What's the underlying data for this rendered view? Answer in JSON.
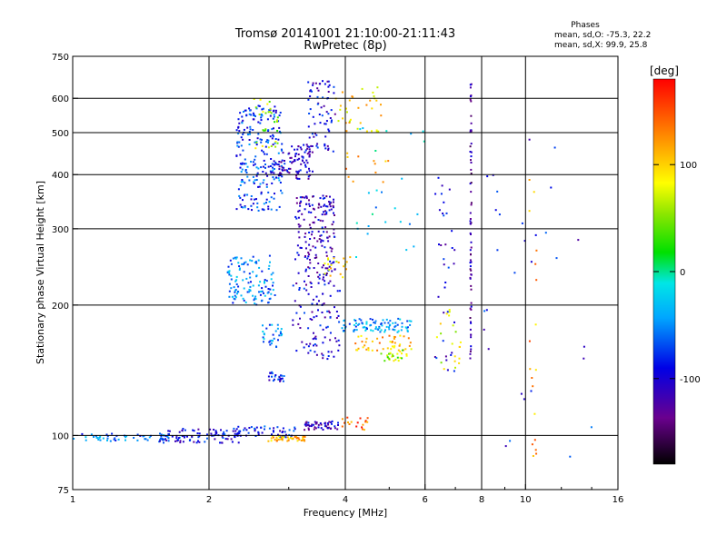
{
  "chart_data": {
    "type": "scatter",
    "title": "Tromsø 20141001 21:10:00-21:11:43",
    "subtitle": "RwPretec (8p)",
    "xlabel": "Frequency [MHz]",
    "ylabel": "Stationary phase Virtual Height [km]",
    "xscale": "log",
    "yscale": "log",
    "xlim": [
      1,
      16
    ],
    "ylim": [
      75,
      750
    ],
    "xticks": [
      1,
      2,
      4,
      6,
      8,
      10,
      16
    ],
    "xtick_labels": [
      "1",
      "2",
      "4",
      "6",
      "8",
      "10",
      "16"
    ],
    "yticks": [
      75,
      100,
      200,
      300,
      400,
      500,
      600,
      750
    ],
    "ytick_labels": [
      "75",
      "100",
      "200",
      "300",
      "400",
      "500",
      "600",
      "750"
    ],
    "xgrid": [
      2,
      4,
      6,
      8,
      10
    ],
    "ygrid": [
      100,
      200,
      300,
      400,
      500,
      600
    ],
    "legend_placement": "top-right",
    "stats": {
      "heading": "Phases",
      "line_o": "mean, sd,O: -75.3, 22.2",
      "line_x": "mean, sd,X:  99.9, 25.8"
    },
    "colorbar": {
      "label": "[deg]",
      "range": [
        -180,
        180
      ],
      "ticks": [
        -100,
        0,
        100
      ],
      "tick_labels": [
        "-100",
        "0",
        "100"
      ],
      "colormap": "rainbow"
    },
    "clusters": [
      {
        "f": [
          1.0,
          1.75
        ],
        "h": [
          97,
          101
        ],
        "phase": -60,
        "n": 60
      },
      {
        "f": [
          1.55,
          2.35
        ],
        "h": [
          96,
          104
        ],
        "phase": -95,
        "n": 90
      },
      {
        "f": [
          2.3,
          3.1
        ],
        "h": [
          99,
          105
        ],
        "phase": -85,
        "n": 50
      },
      {
        "f": [
          2.7,
          3.3
        ],
        "h": [
          97,
          100
        ],
        "phase": 110,
        "n": 45
      },
      {
        "f": [
          3.25,
          3.9
        ],
        "h": [
          103,
          108
        ],
        "phase": -110,
        "n": 50
      },
      {
        "f": [
          3.9,
          4.5
        ],
        "h": [
          103,
          110
        ],
        "phase": 140,
        "n": 18
      },
      {
        "f": [
          2.3,
          2.9
        ],
        "h": [
          330,
          580
        ],
        "phase": -75,
        "n": 240
      },
      {
        "f": [
          2.5,
          2.85
        ],
        "h": [
          460,
          600
        ],
        "phase": 60,
        "n": 30
      },
      {
        "f": [
          2.85,
          3.4
        ],
        "h": [
          390,
          470
        ],
        "phase": -105,
        "n": 90
      },
      {
        "f": [
          3.3,
          3.8
        ],
        "h": [
          450,
          660
        ],
        "phase": -100,
        "n": 70
      },
      {
        "f": [
          3.1,
          3.8
        ],
        "h": [
          230,
          360
        ],
        "phase": -110,
        "n": 170
      },
      {
        "f": [
          3.05,
          3.9
        ],
        "h": [
          150,
          230
        ],
        "phase": -100,
        "n": 100
      },
      {
        "f": [
          2.2,
          2.8
        ],
        "h": [
          200,
          260
        ],
        "phase": -55,
        "n": 120
      },
      {
        "f": [
          2.6,
          2.9
        ],
        "h": [
          160,
          180
        ],
        "phase": -50,
        "n": 30
      },
      {
        "f": [
          2.7,
          2.95
        ],
        "h": [
          133,
          140
        ],
        "phase": -90,
        "n": 25
      },
      {
        "f": [
          3.9,
          5.6
        ],
        "h": [
          173,
          186
        ],
        "phase": -45,
        "n": 90
      },
      {
        "f": [
          4.2,
          5.6
        ],
        "h": [
          157,
          170
        ],
        "phase": 110,
        "n": 45
      },
      {
        "f": [
          4.8,
          5.5
        ],
        "h": [
          148,
          158
        ],
        "phase": 60,
        "n": 25
      },
      {
        "f": [
          3.8,
          4.8
        ],
        "h": [
          500,
          650
        ],
        "phase": 95,
        "n": 35
      },
      {
        "f": [
          3.6,
          4.1
        ],
        "h": [
          230,
          260
        ],
        "phase": 90,
        "n": 20
      },
      {
        "f": [
          4.0,
          5.0
        ],
        "h": [
          380,
          450
        ],
        "phase": 130,
        "n": 12
      },
      {
        "f": [
          7.55,
          7.6
        ],
        "h": [
          150,
          660
        ],
        "phase": -120,
        "n": 70
      },
      {
        "f": [
          6.3,
          7.0
        ],
        "h": [
          140,
          420
        ],
        "phase": -100,
        "n": 35
      },
      {
        "f": [
          6.3,
          7.2
        ],
        "h": [
          140,
          200
        ],
        "phase": 80,
        "n": 20
      },
      {
        "f": [
          10.2,
          10.6
        ],
        "h": [
          85,
          420
        ],
        "phase": 120,
        "n": 18
      },
      {
        "f": [
          8.0,
          14.0
        ],
        "h": [
          80,
          560
        ],
        "phase": -90,
        "n": 30
      },
      {
        "f": [
          4.2,
          6.0
        ],
        "h": [
          250,
          520
        ],
        "phase": -30,
        "n": 25
      }
    ]
  }
}
